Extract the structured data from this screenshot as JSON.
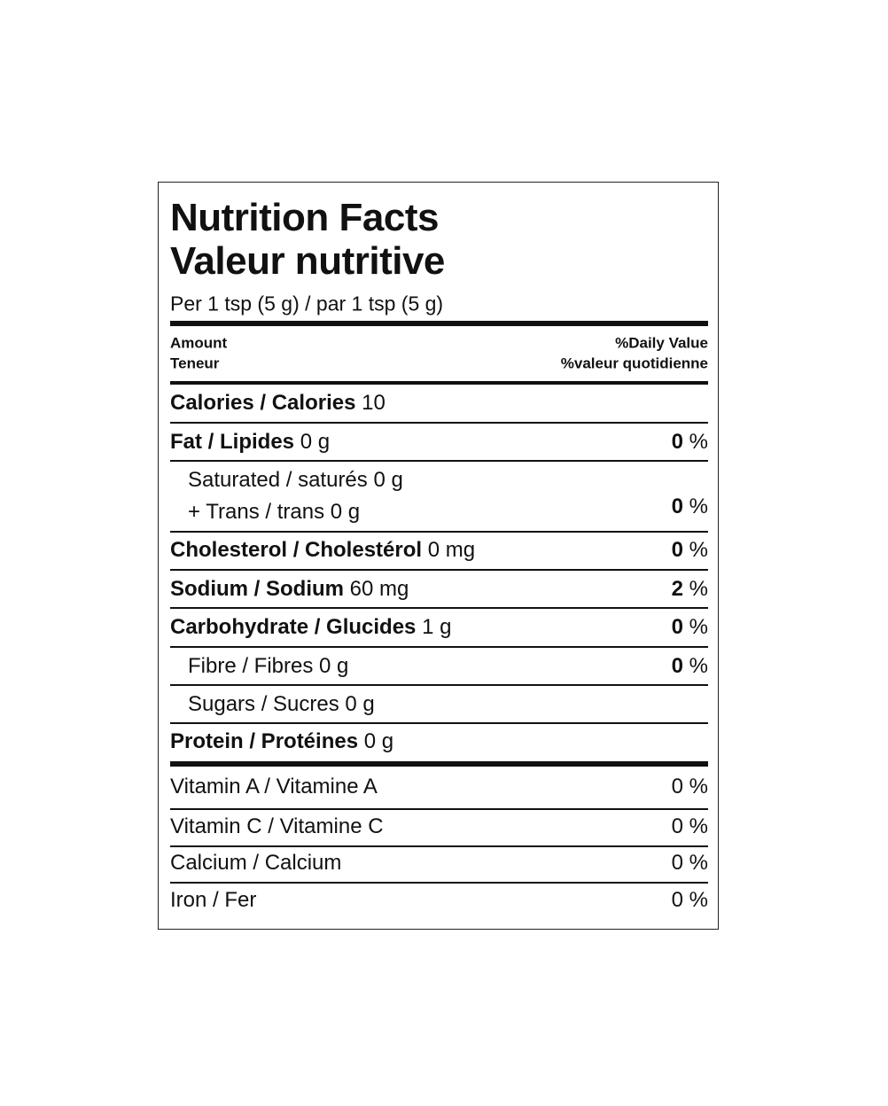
{
  "title": [
    "Nutrition Facts",
    "Valeur nutritive"
  ],
  "serving": "Per 1 tsp (5 g) / par 1 tsp (5 g)",
  "header": {
    "amount": "Amount",
    "teneur": "Teneur",
    "daily_value": "%Daily Value",
    "valeur_quotidienne": "%valeur quotidienne"
  },
  "rows": [
    {
      "label": "Calories / Calories",
      "amount": "10",
      "bold": true
    },
    {
      "label": "Fat / Lipides",
      "amount": "0 g",
      "dv": 0,
      "pct": "%",
      "bold": true
    },
    {
      "label": "Saturated / saturés 0 g",
      "label2": "+ Trans / trans 0 g",
      "dv": 0,
      "pct": "%",
      "bold": false,
      "indent": true,
      "dv_bold": true
    },
    {
      "label": "Cholesterol / Cholestérol",
      "amount": "0 mg",
      "dv": 0,
      "pct": "%",
      "bold": true
    },
    {
      "label": "Sodium / Sodium",
      "amount": "60 mg",
      "dv": 2,
      "pct": "%",
      "bold": true
    },
    {
      "label": "Carbohydrate / Glucides",
      "amount": "1 g",
      "dv": 0,
      "pct": "%",
      "bold": true
    },
    {
      "label": "Fibre / Fibres 0 g",
      "dv": 0,
      "pct": "%",
      "bold": false,
      "indent": true,
      "dv_bold": true
    },
    {
      "label": "Sugars / Sucres 0 g",
      "bold": false,
      "indent": true
    },
    {
      "label": "Protein / Protéines",
      "amount": "0 g",
      "bold": true
    },
    {
      "label": "Vitamin A / Vitamine A",
      "dv": 0,
      "pct": "%",
      "bold": false
    },
    {
      "label": "Vitamin C / Vitamine C",
      "dv": 0,
      "pct": "%",
      "bold": false
    },
    {
      "label": "Calcium / Calcium",
      "dv": 0,
      "pct": "%",
      "bold": false
    },
    {
      "label": "Iron / Fer",
      "dv": 0,
      "pct": "%",
      "bold": false
    }
  ]
}
